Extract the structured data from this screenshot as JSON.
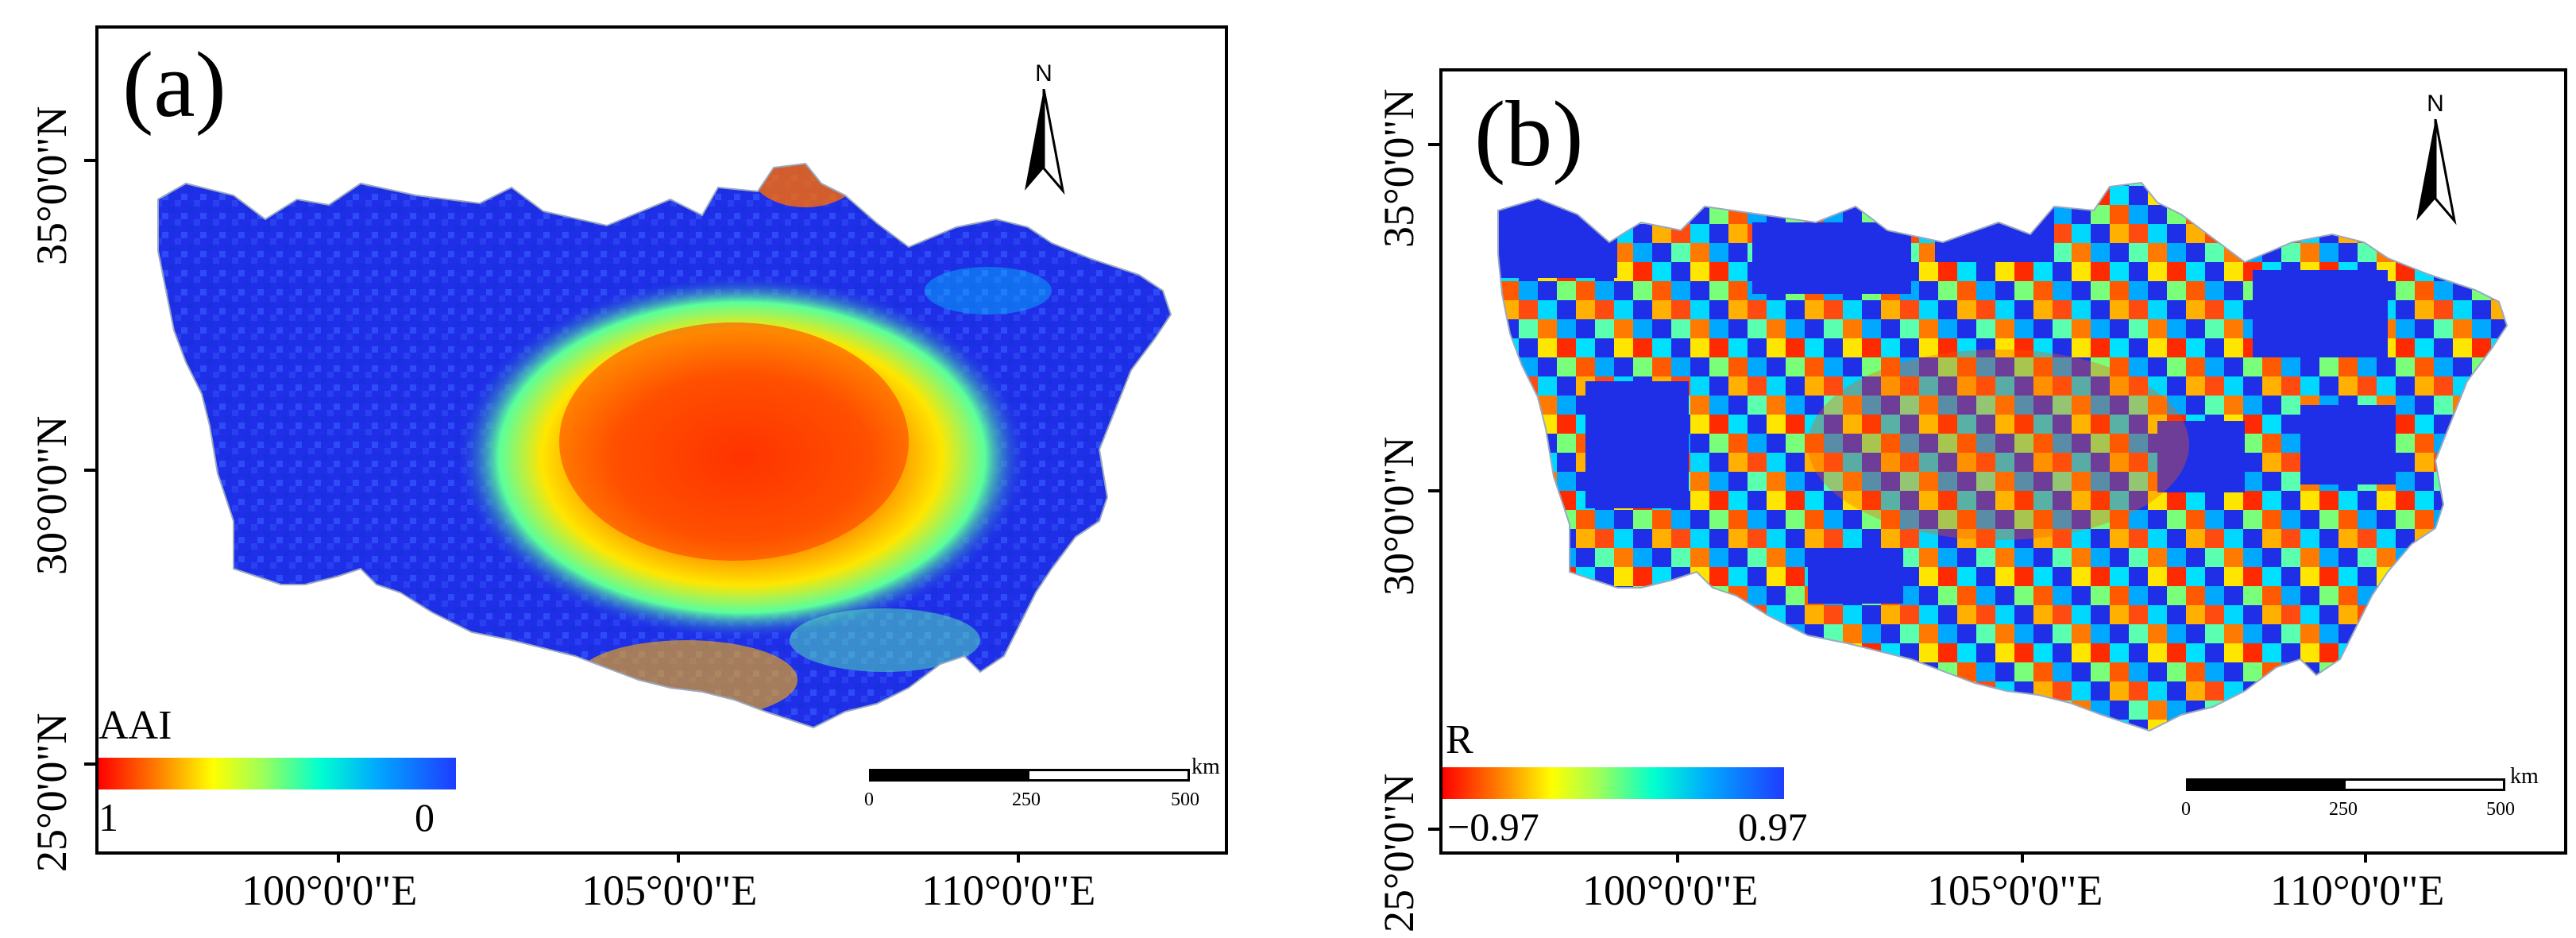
{
  "panels": [
    {
      "id": "a",
      "label": "(a)",
      "north": "N",
      "y_axis_labels": [
        "35°0'0\"N",
        "30°0'0\"N",
        "25°0'0\"N"
      ],
      "x_axis_labels": [
        "100°0'0\"E",
        "105°0'0\"E",
        "110°0'0\"E"
      ],
      "legend": {
        "title": "AAI",
        "min_label": "1",
        "max_label": "0"
      },
      "scale": {
        "ticks": [
          "0",
          "250",
          "500"
        ],
        "unit": "km"
      }
    },
    {
      "id": "b",
      "label": "(b)",
      "north": "N",
      "y_axis_labels": [
        "35°0'0\"N",
        "30°0'0\"N",
        "25°0'0\"N"
      ],
      "x_axis_labels": [
        "100°0'0\"E",
        "105°0'0\"E",
        "110°0'0\"E"
      ],
      "legend": {
        "title": "R",
        "min_label": "−0.97",
        "max_label": "0.97"
      },
      "scale": {
        "ticks": [
          "0",
          "250",
          "500"
        ],
        "unit": "km"
      }
    }
  ],
  "colors": {
    "background_blue": "#1f2fe8",
    "high": "#ff2a00",
    "mid": "#ffe600",
    "cyan": "#00e0ff"
  }
}
